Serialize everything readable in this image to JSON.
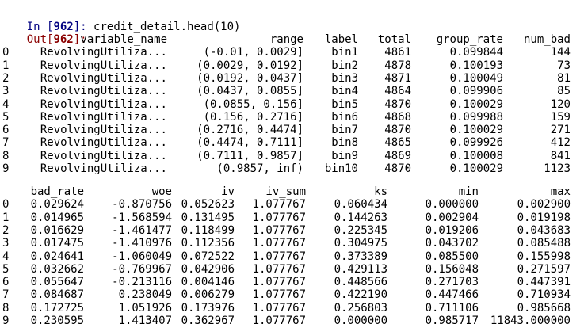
{
  "input_prompt": {
    "prefix": "In [",
    "number": "962",
    "suffix": "]: ",
    "code": "credit_detail.head(10)"
  },
  "output_prompt": {
    "prefix": "Out[",
    "number": "962",
    "suffix": "]:"
  },
  "table1": {
    "columns": [
      "",
      "variable_name",
      "range",
      "label",
      "total",
      "group_rate",
      "num_bad"
    ],
    "rows": [
      [
        "0",
        "RevolvingUtiliza...",
        "(-0.01, 0.0029]",
        "bin1",
        "4861",
        "0.099844",
        "144"
      ],
      [
        "1",
        "RevolvingUtiliza...",
        "(0.0029, 0.0192]",
        "bin2",
        "4878",
        "0.100193",
        "73"
      ],
      [
        "2",
        "RevolvingUtiliza...",
        "(0.0192, 0.0437]",
        "bin3",
        "4871",
        "0.100049",
        "81"
      ],
      [
        "3",
        "RevolvingUtiliza...",
        "(0.0437, 0.0855]",
        "bin4",
        "4864",
        "0.099906",
        "85"
      ],
      [
        "4",
        "RevolvingUtiliza...",
        "(0.0855, 0.156]",
        "bin5",
        "4870",
        "0.100029",
        "120"
      ],
      [
        "5",
        "RevolvingUtiliza...",
        "(0.156, 0.2716]",
        "bin6",
        "4868",
        "0.099988",
        "159"
      ],
      [
        "6",
        "RevolvingUtiliza...",
        "(0.2716, 0.4474]",
        "bin7",
        "4870",
        "0.100029",
        "271"
      ],
      [
        "7",
        "RevolvingUtiliza...",
        "(0.4474, 0.7111]",
        "bin8",
        "4865",
        "0.099926",
        "412"
      ],
      [
        "8",
        "RevolvingUtiliza...",
        "(0.7111, 0.9857]",
        "bin9",
        "4869",
        "0.100008",
        "841"
      ],
      [
        "9",
        "RevolvingUtiliza...",
        "(0.9857, inf)",
        "bin10",
        "4870",
        "0.100029",
        "1123"
      ]
    ]
  },
  "table2": {
    "columns": [
      "",
      "bad_rate",
      "woe",
      "iv",
      "iv_sum",
      "ks",
      "min",
      "max"
    ],
    "rows": [
      [
        "0",
        "0.029624",
        "-0.870756",
        "0.052623",
        "1.077767",
        "0.060434",
        "0.000000",
        "0.002900"
      ],
      [
        "1",
        "0.014965",
        "-1.568594",
        "0.131495",
        "1.077767",
        "0.144263",
        "0.002904",
        "0.019198"
      ],
      [
        "2",
        "0.016629",
        "-1.461477",
        "0.118499",
        "1.077767",
        "0.225345",
        "0.019206",
        "0.043683"
      ],
      [
        "3",
        "0.017475",
        "-1.410976",
        "0.112356",
        "1.077767",
        "0.304975",
        "0.043702",
        "0.085488"
      ],
      [
        "4",
        "0.024641",
        "-1.060049",
        "0.072522",
        "1.077767",
        "0.373389",
        "0.085500",
        "0.155998"
      ],
      [
        "5",
        "0.032662",
        "-0.769967",
        "0.042906",
        "1.077767",
        "0.429113",
        "0.156048",
        "0.271597"
      ],
      [
        "6",
        "0.055647",
        "-0.213116",
        "0.004146",
        "1.077767",
        "0.448566",
        "0.271703",
        "0.447391"
      ],
      [
        "7",
        "0.084687",
        "0.238049",
        "0.006279",
        "1.077767",
        "0.422190",
        "0.447466",
        "0.710934"
      ],
      [
        "8",
        "0.172725",
        "1.051926",
        "0.173976",
        "1.077767",
        "0.256803",
        "0.711106",
        "0.985668"
      ],
      [
        "9",
        "0.230595",
        "1.413407",
        "0.362967",
        "1.077767",
        "0.000000",
        "0.985717",
        "11843.000000"
      ]
    ]
  },
  "colors": {
    "input_prompt": "#000080",
    "output_prompt": "#8b0000",
    "text": "#000000",
    "background": "#ffffff"
  }
}
